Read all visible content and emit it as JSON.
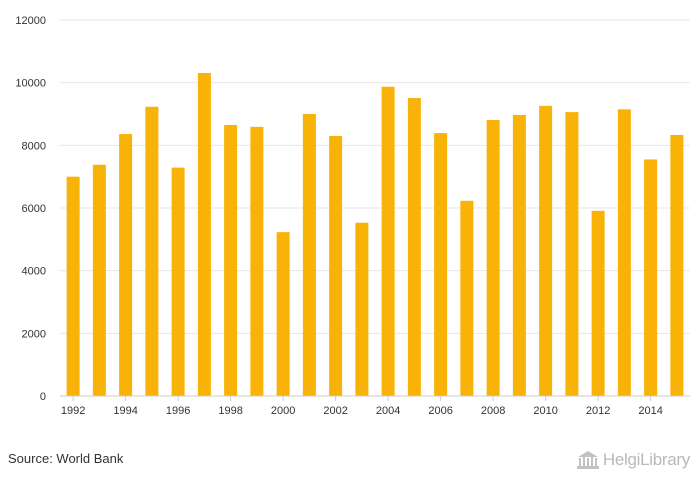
{
  "chart_data": {
    "type": "bar",
    "categories": [
      "1992",
      "1993",
      "1994",
      "1995",
      "1996",
      "1997",
      "1998",
      "1999",
      "2000",
      "2001",
      "2002",
      "2003",
      "2004",
      "2005",
      "2006",
      "2007",
      "2008",
      "2009",
      "2010",
      "2011",
      "2012",
      "2013",
      "2014",
      "2015"
    ],
    "values": [
      7000,
      7380,
      8360,
      9230,
      7290,
      10310,
      8650,
      8590,
      5230,
      9000,
      8300,
      5530,
      9870,
      9510,
      8390,
      6230,
      8810,
      8970,
      9260,
      9060,
      5910,
      9150,
      7550,
      8330
    ],
    "x_tick_labels": [
      "1992",
      "1994",
      "1996",
      "1998",
      "2000",
      "2002",
      "2004",
      "2006",
      "2008",
      "2010",
      "2012",
      "2014"
    ],
    "y_ticks": [
      0,
      2000,
      4000,
      6000,
      8000,
      10000,
      12000
    ],
    "ylim": [
      0,
      12000
    ],
    "title": "",
    "xlabel": "",
    "ylabel": "",
    "grid": true,
    "bar_color": "#F9B208",
    "grid_color": "#e6e6e6"
  },
  "source_text": "Source: World Bank",
  "brand": {
    "name": "HelgiLibrary",
    "icon": "library-building-icon"
  }
}
